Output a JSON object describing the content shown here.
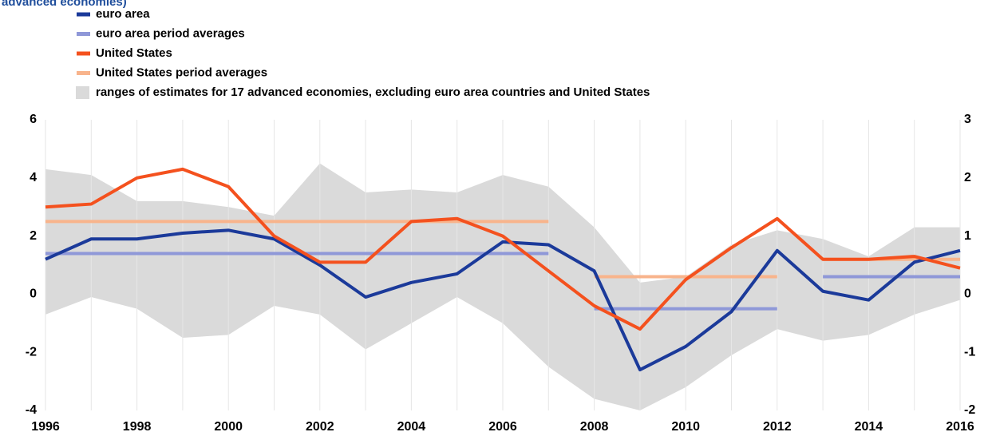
{
  "chart_data": {
    "type": "line",
    "subtitle": "advanced economies)",
    "x": [
      1996,
      1997,
      1998,
      1999,
      2000,
      2001,
      2002,
      2003,
      2004,
      2005,
      2006,
      2007,
      2008,
      2009,
      2010,
      2011,
      2012,
      2013,
      2014,
      2015,
      2016
    ],
    "series": [
      {
        "name": "euro area",
        "color": "#1b3a9a",
        "values": [
          1.2,
          1.9,
          1.9,
          2.1,
          2.2,
          1.9,
          1.0,
          -0.1,
          0.4,
          0.7,
          1.8,
          1.7,
          0.8,
          -2.6,
          -1.8,
          -0.6,
          1.5,
          0.1,
          -0.2,
          1.1,
          1.5
        ]
      },
      {
        "name": "United States",
        "color": "#f4511e",
        "values": [
          3.0,
          3.1,
          4.0,
          4.3,
          3.7,
          2.0,
          1.1,
          1.1,
          2.5,
          2.6,
          2.0,
          0.8,
          -0.4,
          -1.2,
          0.5,
          1.6,
          2.6,
          1.2,
          1.2,
          1.3,
          0.9
        ]
      }
    ],
    "averages": [
      {
        "name": "euro area period averages",
        "color": "#8f98d8",
        "segments": [
          {
            "start": 1996,
            "end": 2007,
            "value": 1.4
          },
          {
            "start": 2008,
            "end": 2012,
            "value": -0.5
          },
          {
            "start": 2013,
            "end": 2016,
            "value": 0.6
          }
        ]
      },
      {
        "name": "United States period averages",
        "color": "#f8b48c",
        "segments": [
          {
            "start": 1996,
            "end": 2007,
            "value": 2.5
          },
          {
            "start": 2008,
            "end": 2012,
            "value": 0.6
          },
          {
            "start": 2013,
            "end": 2016,
            "value": 1.2
          }
        ]
      }
    ],
    "band": {
      "name": "ranges of estimates for 17 advanced economies, excluding euro area countries and United States",
      "color": "#dadada",
      "upper": [
        4.3,
        4.1,
        3.2,
        3.2,
        3.0,
        2.7,
        4.5,
        3.5,
        3.6,
        3.5,
        4.1,
        3.7,
        2.3,
        0.4,
        0.6,
        1.7,
        2.2,
        1.9,
        1.3,
        2.3,
        2.3
      ],
      "lower": [
        -0.7,
        -0.1,
        -0.5,
        -1.5,
        -1.4,
        -0.4,
        -0.7,
        -1.9,
        -1.0,
        -0.1,
        -1.0,
        -2.5,
        -3.6,
        -4.0,
        -3.2,
        -2.1,
        -1.2,
        -1.6,
        -1.4,
        -0.7,
        -0.2
      ]
    },
    "xlim": [
      1996,
      2016
    ],
    "xticks": [
      1996,
      1998,
      2000,
      2002,
      2004,
      2006,
      2008,
      2010,
      2012,
      2014,
      2016
    ],
    "ylim": [
      -4,
      6
    ],
    "yticks": [
      -4,
      -2,
      0,
      2,
      4,
      6
    ],
    "y2lim": [
      -2,
      3
    ],
    "y2ticks": [
      -2,
      -1,
      0,
      1,
      2,
      3
    ],
    "grid": true
  }
}
